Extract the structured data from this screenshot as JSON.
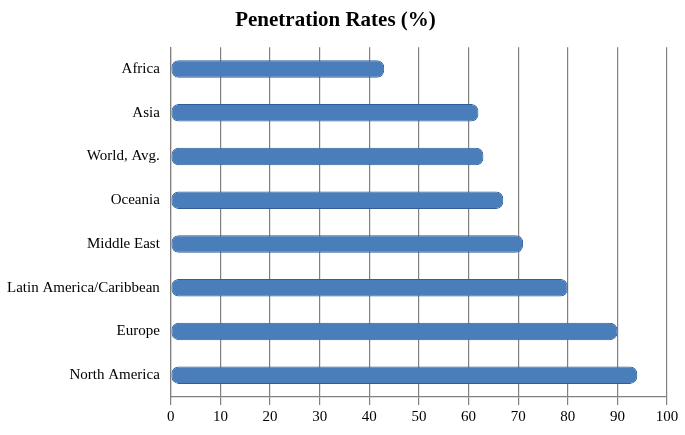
{
  "chart_data": {
    "type": "bar",
    "title": "Penetration Rates (%)",
    "orientation": "horizontal",
    "categories": [
      "Africa",
      "Asia",
      "World, Avg.",
      "Oceania",
      "Middle East",
      "Latin America/Caribbean",
      "Europe",
      "North America"
    ],
    "values": [
      43,
      62,
      63,
      67,
      71,
      80,
      90,
      94
    ],
    "color": "#4a7ebb",
    "xlim": [
      0,
      100
    ],
    "xticks": [
      0,
      10,
      20,
      30,
      40,
      50,
      60,
      70,
      80,
      90,
      100
    ],
    "grid": true
  }
}
